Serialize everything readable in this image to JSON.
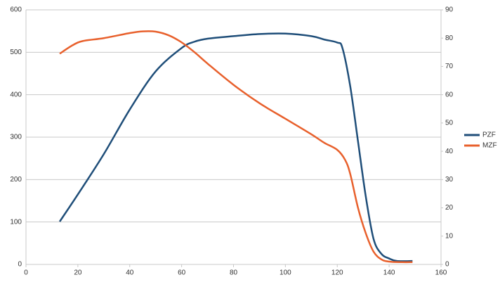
{
  "chart_data": {
    "type": "line",
    "series": [
      {
        "name": "PZF",
        "color": "#1f4e79",
        "x": [
          13,
          20,
          30,
          40,
          50,
          60,
          65,
          70,
          80,
          90,
          100,
          110,
          115,
          120,
          122,
          125,
          128,
          131,
          134,
          137,
          140,
          143,
          149
        ],
        "values": [
          101,
          165,
          260,
          365,
          455,
          510,
          525,
          532,
          538,
          543,
          544,
          538,
          530,
          523,
          510,
          420,
          290,
          160,
          60,
          25,
          14,
          8,
          8
        ]
      },
      {
        "name": "MZF",
        "color": "#e8602c",
        "axis": "y2",
        "x": [
          13,
          18,
          22,
          30,
          40,
          45,
          50,
          55,
          60,
          65,
          70,
          80,
          90,
          100,
          110,
          115,
          120,
          123,
          125,
          128,
          131,
          134,
          137,
          140,
          145,
          149
        ],
        "values": [
          74.5,
          77.5,
          79,
          80,
          81.8,
          82.4,
          82.3,
          81,
          78.5,
          75,
          71,
          63.5,
          57,
          51.5,
          46,
          43,
          40.5,
          37,
          32,
          20,
          11,
          4.5,
          1.8,
          1,
          0.8,
          0.8
        ]
      }
    ],
    "xlim": [
      0,
      160
    ],
    "xticks": [
      0,
      20,
      40,
      60,
      80,
      100,
      120,
      140,
      160
    ],
    "ylim": [
      0,
      600
    ],
    "yticks": [
      0,
      100,
      200,
      300,
      400,
      500,
      600
    ],
    "y2lim": [
      0,
      90
    ],
    "y2ticks": [
      0,
      10,
      20,
      30,
      40,
      50,
      60,
      70,
      80,
      90
    ],
    "grid": true,
    "legend": "right"
  }
}
